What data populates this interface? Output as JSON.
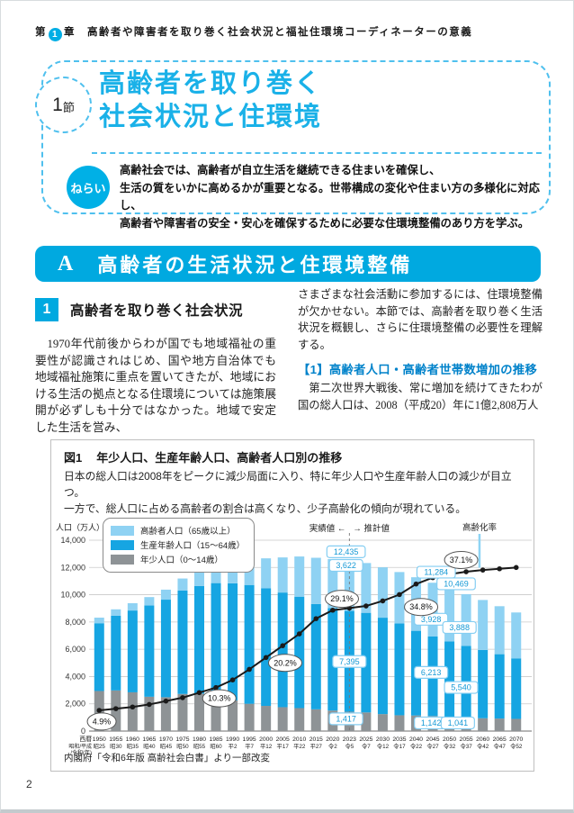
{
  "chapter_header": {
    "prefix": "第",
    "number": "1",
    "suffix": "章",
    "title": "高齢者や障害者を取り巻く社会状況と福祉住環境コーディネーターの意義"
  },
  "section": {
    "badge_num": "1",
    "badge_suffix": "節",
    "title_line1": "高齢者を取り巻く",
    "title_line2": "社会状況と住環境",
    "aim_label": "ねらい",
    "aim_lines": [
      "高齢社会では、高齢者が自立生活を継続できる住まいを確保し、",
      "生活の質をいかに高めるかが重要となる。世帯構成の変化や住まい方の多様化に対応し、",
      "高齢者や障害者の安全・安心を確保するために必要な住環境整備のあり方を学ぶ。"
    ]
  },
  "section_a": {
    "letter": "A",
    "title": "高齢者の生活状況と住環境整備"
  },
  "subsection1": {
    "num": "1",
    "title": "高齢者を取り巻く社会状況"
  },
  "body": {
    "left_paragraph": "　1970年代前後からわが国でも地域福祉の重要性が認識されはじめ、国や地方自治体でも地域福祉施策に重点を置いてきたが、地域における生活の拠点となる住環境については施策展開が必ずしも十分ではなかった。地域で安定した生活を営み、",
    "right_paragraph": "さまざまな社会活動に参加するには、住環境整備が欠かせない。本節では、高齢者を取り巻く生活状況を概観し、さらに住環境整備の必要性を理解する。",
    "sub_heading": "【1】高齢者人口・高齢者世帯数増加の推移",
    "right_paragraph2": "　第二次世界大戦後、常に増加を続けてきたわが国の総人口は、2008（平成20）年に1億2,808万人"
  },
  "figure": {
    "label": "図1",
    "title": "年少人口、生産年齢人口、高齢者人口別の推移",
    "desc_lines": [
      "日本の総人口は2008年をピークに減少局面に入り、特に年少人口や生産年齢人口の減少が目立つ。",
      "一方で、総人口に占める高齢者の割合は高くなり、少子高齢化の傾向が現れている。"
    ],
    "ylabel": "人口（万人）",
    "legend": [
      {
        "label": "高齢者人口（65歳以上）",
        "color": "#8fd2f3"
      },
      {
        "label": "生産年齢人口（15〜64歳）",
        "color": "#16a5e2"
      },
      {
        "label": "年少人口（0〜14歳）",
        "color": "#8e9396"
      }
    ],
    "source": "内閣府「令和6年版 高齢社会白書」より一部改変"
  },
  "page_number": "2",
  "colors": {
    "accent_cyan": "#00aee5",
    "title_cyan": "#1ab1e8",
    "heading_blue": "#0082ca",
    "bar_elderly": "#8fd2f3",
    "bar_working": "#16a5e2",
    "bar_young": "#8e9396",
    "rate_line": "#1a1a1a",
    "callout_box_border": "#85cef2",
    "callout_text": "#1599d6"
  },
  "chart_data": {
    "type": "bar",
    "stacked": true,
    "title": "年少人口、生産年齢人口、高齢者人口別の推移",
    "xlabel": "西暦／昭和・平成・令和（年）",
    "ylabel": "人口（万人）",
    "ylim": [
      0,
      14000
    ],
    "yticks": [
      0,
      2000,
      4000,
      6000,
      8000,
      10000,
      12000,
      14000
    ],
    "ytick_labels": [
      "0",
      "2,000",
      "4,000",
      "6,000",
      "8,000",
      "10,000",
      "12,000",
      "14,000"
    ],
    "grid": true,
    "legend_position": "top-left",
    "categories": [
      "1950",
      "1955",
      "1960",
      "1965",
      "1970",
      "1975",
      "1980",
      "1985",
      "1990",
      "1995",
      "2000",
      "2005",
      "2010",
      "2015",
      "2020",
      "2023",
      "2025",
      "2030",
      "2035",
      "2040",
      "2045",
      "2050",
      "2055",
      "2060",
      "2065",
      "2070"
    ],
    "era_labels": [
      "昭25",
      "昭30",
      "昭35",
      "昭40",
      "昭45",
      "昭50",
      "昭55",
      "昭60",
      "平2",
      "平7",
      "平12",
      "平17",
      "平22",
      "平27",
      "令2",
      "令5",
      "令7",
      "令12",
      "令17",
      "令22",
      "令27",
      "令32",
      "令37",
      "令42",
      "令47",
      "令52"
    ],
    "axis_left_labels": [
      "西暦",
      "昭和/平成",
      "/令和(年)"
    ],
    "series": [
      {
        "name": "年少人口（0〜14歳）",
        "color": "#8e9396",
        "values": [
          2940,
          2980,
          2843,
          2517,
          2482,
          2722,
          2751,
          2603,
          2249,
          2001,
          1847,
          1752,
          1684,
          1595,
          1503,
          1417,
          1366,
          1246,
          1159,
          1142,
          1103,
          1041,
          983,
          942,
          917,
          893
        ]
      },
      {
        "name": "生産年齢人口（15〜64歳）",
        "color": "#16a5e2",
        "values": [
          4970,
          5473,
          6000,
          6693,
          7157,
          7581,
          7883,
          8251,
          8590,
          8716,
          8622,
          8409,
          8174,
          7729,
          7509,
          7395,
          7307,
          7070,
          6731,
          6213,
          5832,
          5540,
          5271,
          5014,
          4722,
          4440
        ]
      },
      {
        "name": "高齢者人口（65歳以上）",
        "color": "#8fd2f3",
        "values": [
          410,
          476,
          535,
          618,
          733,
          887,
          1065,
          1247,
          1489,
          1826,
          2201,
          2576,
          2948,
          3387,
          3603,
          3622,
          3653,
          3696,
          3774,
          3928,
          3945,
          3888,
          3790,
          3659,
          3520,
          3367
        ]
      }
    ],
    "line": {
      "name": "高齢化率",
      "unit": "%",
      "axis_factor": 310,
      "values": [
        4.9,
        5.3,
        5.7,
        6.3,
        7.1,
        7.9,
        9.1,
        10.3,
        12.1,
        14.6,
        17.4,
        20.2,
        23.0,
        26.6,
        28.6,
        29.1,
        29.6,
        30.8,
        32.3,
        34.8,
        36.3,
        37.1,
        37.7,
        38.1,
        38.4,
        38.7
      ]
    },
    "annotations": {
      "boundary_year": "2023",
      "boundary_label_left": "実績値",
      "boundary_label_right": "推計値",
      "rate_pointer_label": "高齢化率",
      "rate_pointer_xi": 22.8,
      "rate_pointer_level": 11780,
      "value_callouts": [
        {
          "text": "12,435",
          "xi": 14.8,
          "level": 13150
        },
        {
          "text": "3,622",
          "xi": 14.8,
          "level": 12150
        },
        {
          "text": "7,395",
          "xi": 15.0,
          "level": 5100
        },
        {
          "text": "1,417",
          "xi": 14.8,
          "level": 900
        },
        {
          "text": "11,284",
          "xi": 20.2,
          "level": 11650
        },
        {
          "text": "3,928",
          "xi": 19.9,
          "level": 8200
        },
        {
          "text": "6,213",
          "xi": 19.9,
          "level": 4300
        },
        {
          "text": "1,142",
          "xi": 19.9,
          "level": 600
        },
        {
          "text": "10,469",
          "xi": 21.4,
          "level": 10800
        },
        {
          "text": "3,888",
          "xi": 21.6,
          "level": 7600
        },
        {
          "text": "5,540",
          "xi": 21.7,
          "level": 3200
        },
        {
          "text": "1,041",
          "xi": 21.5,
          "level": 600
        }
      ],
      "rate_callouts": [
        {
          "text": "4.9%",
          "xi": 0.15,
          "level": 700
        },
        {
          "text": "10.3%",
          "xi": 7.2,
          "level": 2400
        },
        {
          "text": "20.2%",
          "xi": 11.15,
          "level": 5000
        },
        {
          "text": "29.1%",
          "xi": 14.55,
          "level": 9700
        },
        {
          "text": "34.8%",
          "xi": 19.3,
          "level": 9100
        },
        {
          "text": "37.1%",
          "xi": 21.7,
          "level": 12550
        }
      ]
    }
  }
}
